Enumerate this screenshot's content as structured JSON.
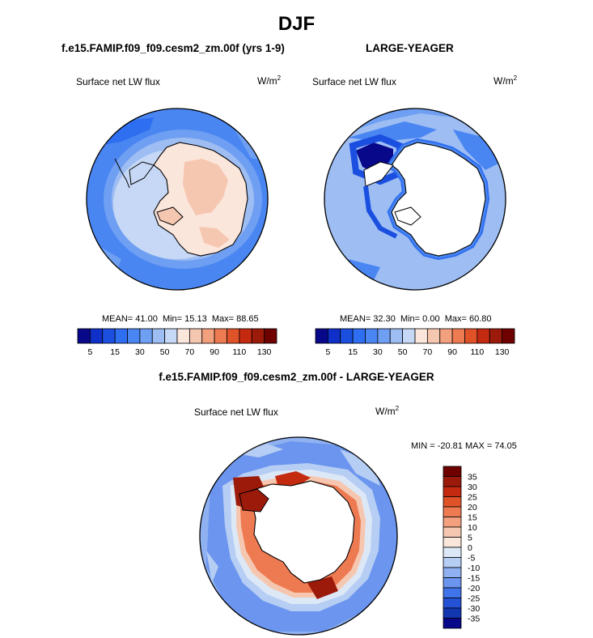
{
  "figure": {
    "title": "DJF",
    "panels": [
      {
        "title": "f.e15.FAMIP.f09_f09.cesm2_zm.00f (yrs 1-9)",
        "variable": "Surface net LW flux",
        "units_base": "W/m",
        "units_exp": "2",
        "stats": {
          "mean_label": "MEAN=",
          "mean": "41.00",
          "min_label": "Min=",
          "min": "15.13",
          "max_label": "Max=",
          "max": "88.65"
        }
      },
      {
        "title": "LARGE-YEAGER",
        "variable": "Surface net LW flux",
        "units_base": "W/m",
        "units_exp": "2",
        "stats": {
          "mean_label": "MEAN=",
          "mean": "32.30",
          "min_label": "Min=",
          "min": "0.00",
          "max_label": "Max=",
          "max": "60.80"
        }
      },
      {
        "title": "f.e15.FAMIP.f09_f09.cesm2_zm.00f - LARGE-YEAGER",
        "variable": "Surface net LW flux",
        "units_base": "W/m",
        "units_exp": "2",
        "minmax": "MIN = -20.81 MAX =  74.05"
      }
    ]
  },
  "chart_data": [
    {
      "type": "heatmap",
      "projection": "south polar stereographic",
      "title": "f.e15.FAMIP.f09_f09.cesm2_zm.00f (yrs 1-9)",
      "variable": "Surface net LW flux",
      "units": "W/m^2",
      "mean": 41.0,
      "min": 15.13,
      "max": 88.65,
      "colorbar_levels": [
        5,
        10,
        15,
        20,
        30,
        40,
        50,
        60,
        70,
        80,
        90,
        100,
        110,
        120,
        130
      ],
      "colorbar_tick_labels": [
        "5",
        "15",
        "30",
        "50",
        "70",
        "90",
        "110",
        "130"
      ],
      "colorbar_colors": [
        "#08088a",
        "#0f30c8",
        "#1a4fe0",
        "#2e6ef0",
        "#4a86f2",
        "#6f9ff2",
        "#9dbdf3",
        "#c6d8f5",
        "#fbe6dc",
        "#f6c7b0",
        "#f2a07e",
        "#ee7a52",
        "#e05228",
        "#c42a10",
        "#9c1a0a",
        "#6f0000"
      ]
    },
    {
      "type": "heatmap",
      "projection": "south polar stereographic",
      "title": "LARGE-YEAGER",
      "variable": "Surface net LW flux",
      "units": "W/m^2",
      "mean": 32.3,
      "min": 0.0,
      "max": 60.8,
      "colorbar_levels": [
        5,
        10,
        15,
        20,
        30,
        40,
        50,
        60,
        70,
        80,
        90,
        100,
        110,
        120,
        130
      ],
      "colorbar_tick_labels": [
        "5",
        "15",
        "30",
        "50",
        "70",
        "90",
        "110",
        "130"
      ],
      "colorbar_colors": [
        "#08088a",
        "#0f30c8",
        "#1a4fe0",
        "#2e6ef0",
        "#4a86f2",
        "#6f9ff2",
        "#9dbdf3",
        "#c6d8f5",
        "#fbe6dc",
        "#f6c7b0",
        "#f2a07e",
        "#ee7a52",
        "#e05228",
        "#c42a10",
        "#9c1a0a",
        "#6f0000"
      ]
    },
    {
      "type": "heatmap",
      "projection": "south polar stereographic",
      "title": "f.e15.FAMIP.f09_f09.cesm2_zm.00f - LARGE-YEAGER",
      "variable": "Surface net LW flux",
      "units": "W/m^2",
      "min": -20.81,
      "max": 74.05,
      "colorbar_tick_labels": [
        "35",
        "30",
        "25",
        "20",
        "15",
        "10",
        "5",
        "0",
        "-5",
        "-10",
        "-15",
        "-20",
        "-25",
        "-30",
        "-35"
      ],
      "colorbar_colors": [
        "#6f0000",
        "#9c1a0a",
        "#c42a10",
        "#e05228",
        "#ee7a52",
        "#f2a07e",
        "#f6c7b0",
        "#fbe6dc",
        "#dde8f7",
        "#b6cdf4",
        "#8fb1f1",
        "#6b95ee",
        "#3f74ea",
        "#2551d4",
        "#1236b0",
        "#08088a"
      ]
    }
  ]
}
